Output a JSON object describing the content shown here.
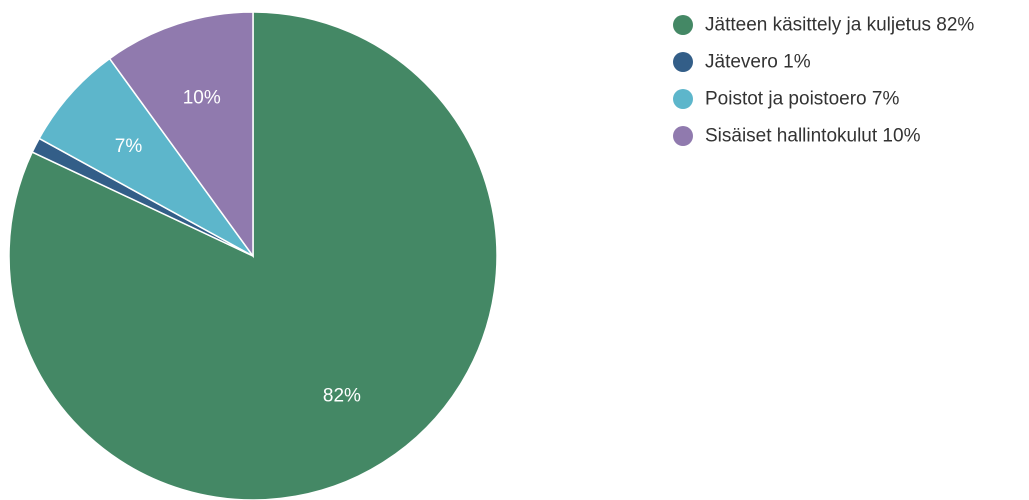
{
  "chart_data": {
    "type": "pie",
    "title": "",
    "start_angle_deg": 0,
    "direction": "clockwise",
    "legend_position": "right",
    "slices": [
      {
        "label": "Jätteen käsittely ja kuljetus",
        "value": 82,
        "display": "82%",
        "legend": "Jätteen käsittely ja kuljetus 82%",
        "color": "#448865",
        "show_label": true
      },
      {
        "label": "Jätevero",
        "value": 1,
        "display": "1%",
        "legend": "Jätevero 1%",
        "color": "#335e88",
        "show_label": false
      },
      {
        "label": "Poistot ja poistoero",
        "value": 7,
        "display": "7%",
        "legend": "Poistot ja poistoero 7%",
        "color": "#5db6cb",
        "show_label": true
      },
      {
        "label": "Sisäiset hallintokulut",
        "value": 10,
        "display": "10%",
        "legend": "Sisäiset hallintokulut 10%",
        "color": "#907aae",
        "show_label": true
      }
    ]
  }
}
